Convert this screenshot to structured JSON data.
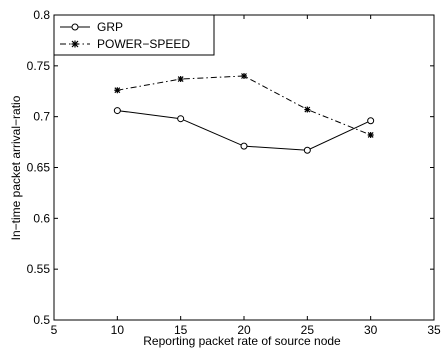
{
  "chart_data": {
    "type": "line",
    "title": "",
    "xlabel": "Reporting packet rate of source node",
    "ylabel": "In−time packet arrival−ratio",
    "xlim": [
      5,
      35
    ],
    "ylim": [
      0.5,
      0.8
    ],
    "xticks": [
      5,
      10,
      15,
      20,
      25,
      30,
      35
    ],
    "xtick_labels": [
      "5",
      "10",
      "15",
      "20",
      "25",
      "30",
      "35"
    ],
    "yticks": [
      0.5,
      0.55,
      0.6,
      0.65,
      0.7,
      0.75,
      0.8
    ],
    "ytick_labels": [
      "0.5",
      "0.55",
      "0.6",
      "0.65",
      "0.7",
      "0.75",
      "0.8"
    ],
    "grid": false,
    "legend_position": "top-left",
    "series": [
      {
        "name": "GRP",
        "x": [
          10,
          15,
          20,
          25,
          30
        ],
        "values": [
          0.706,
          0.698,
          0.671,
          0.667,
          0.696
        ],
        "line_style": "solid",
        "marker": "circle",
        "color": "#000000"
      },
      {
        "name": "POWER−SPEED",
        "x": [
          10,
          15,
          20,
          25,
          30
        ],
        "values": [
          0.726,
          0.737,
          0.74,
          0.707,
          0.682
        ],
        "line_style": "dash-dot",
        "marker": "star",
        "color": "#000000"
      }
    ]
  }
}
